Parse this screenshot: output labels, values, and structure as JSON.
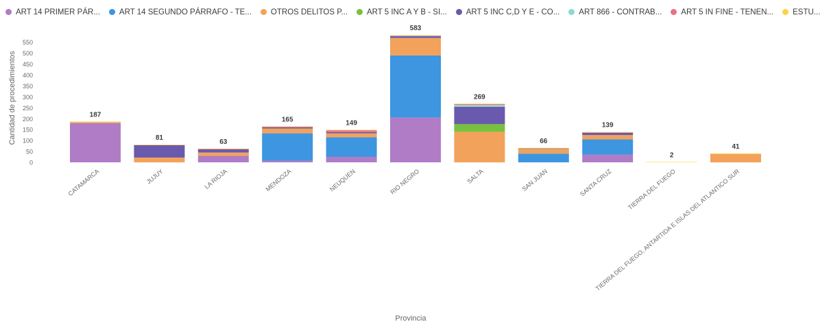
{
  "chart_data": {
    "type": "bar",
    "stacked": true,
    "xlabel": "Provincia",
    "ylabel": "Cantidad de procedimientos",
    "ylim": [
      0,
      590
    ],
    "yticks": [
      0,
      50,
      100,
      150,
      200,
      250,
      300,
      350,
      400,
      450,
      500,
      550
    ],
    "grid": false,
    "legend_position": "top",
    "categories": [
      "CATAMARCA",
      "JUJUY",
      "LA RIOJA",
      "MENDOZA",
      "NEUQUEN",
      "RIO NEGRO",
      "SALTA",
      "SAN JUAN",
      "SANTA CRUZ",
      "TIERRA DEL FUEGO",
      "TIERRA DEL FUEGO, ANTARTIDA E ISLAS DEL ATLANTICO SUR"
    ],
    "totals": [
      187,
      81,
      63,
      165,
      149,
      583,
      269,
      66,
      139,
      2,
      41
    ],
    "series": [
      {
        "name": "ART 14 PRIMER PÁR...",
        "color": "#b07cc6",
        "values": [
          180,
          0,
          30,
          8,
          25,
          205,
          0,
          0,
          35,
          0,
          0
        ]
      },
      {
        "name": "ART 14 SEGUNDO PÁRRAFO - TE...",
        "color": "#3e95e0",
        "values": [
          0,
          0,
          0,
          125,
          90,
          285,
          0,
          40,
          70,
          0,
          0
        ]
      },
      {
        "name": "OTROS DELITOS P...",
        "color": "#f2a25a",
        "values": [
          4,
          22,
          15,
          22,
          18,
          80,
          140,
          22,
          20,
          0,
          38
        ]
      },
      {
        "name": "ART 5 INC A Y B - SI...",
        "color": "#77c13e",
        "values": [
          0,
          0,
          0,
          0,
          0,
          0,
          35,
          0,
          0,
          0,
          0
        ]
      },
      {
        "name": "ART 5 INC C,D Y E - CO...",
        "color": "#6a5aad",
        "values": [
          0,
          57,
          15,
          5,
          6,
          8,
          80,
          2,
          10,
          0,
          0
        ]
      },
      {
        "name": "ART 866 - CONTRAB...",
        "color": "#8fdad0",
        "values": [
          0,
          0,
          0,
          0,
          0,
          2,
          8,
          0,
          0,
          0,
          0
        ]
      },
      {
        "name": "ART 5 IN FINE - TENEN...",
        "color": "#ea7285",
        "values": [
          0,
          0,
          1,
          3,
          8,
          1,
          4,
          0,
          2,
          0,
          0
        ]
      },
      {
        "name": "ESTU...",
        "color": "#f9d448",
        "values": [
          3,
          2,
          2,
          2,
          2,
          2,
          2,
          2,
          2,
          2,
          3
        ]
      }
    ]
  }
}
